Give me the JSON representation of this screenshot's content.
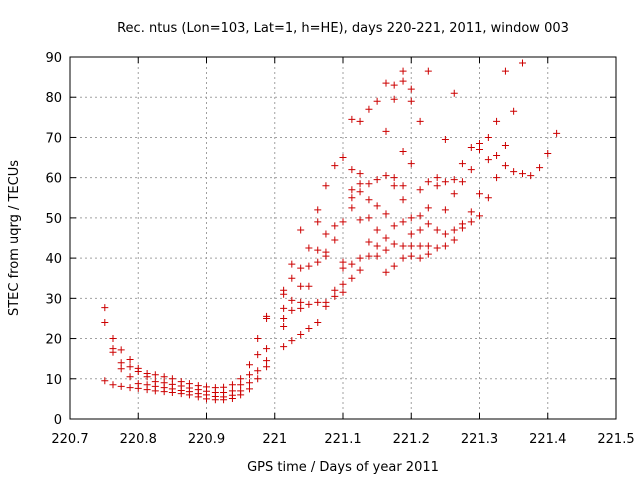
{
  "chart_data": {
    "type": "scatter",
    "title": "Rec. ntus (Lon=103, Lat=1, h=HE), days 220-221, 2011, window 003",
    "xlabel": "GPS time / Days of year 2011",
    "ylabel": "STEC from uqrg / TECUs",
    "xlim": [
      220.7,
      221.5
    ],
    "ylim": [
      0,
      90
    ],
    "x_ticks": [
      "220.7",
      "220.8",
      "220.9",
      "221",
      "221.1",
      "221.2",
      "221.3",
      "221.4",
      "221.5"
    ],
    "y_ticks": [
      "0",
      "10",
      "20",
      "30",
      "40",
      "50",
      "60",
      "70",
      "80",
      "90"
    ],
    "grid": true,
    "marker": "plus",
    "color": "#cc0000",
    "points": [
      [
        220.751,
        27.7
      ],
      [
        220.751,
        24.0
      ],
      [
        220.751,
        9.5
      ],
      [
        220.763,
        20.0
      ],
      [
        220.763,
        17.5
      ],
      [
        220.763,
        16.6
      ],
      [
        220.763,
        8.5
      ],
      [
        220.775,
        17.2
      ],
      [
        220.775,
        14.0
      ],
      [
        220.775,
        12.5
      ],
      [
        220.775,
        8.1
      ],
      [
        220.788,
        14.8
      ],
      [
        220.788,
        13.0
      ],
      [
        220.788,
        10.5
      ],
      [
        220.788,
        7.8
      ],
      [
        220.8,
        12.6
      ],
      [
        220.8,
        11.8
      ],
      [
        220.8,
        8.8
      ],
      [
        220.8,
        7.6
      ],
      [
        220.813,
        11.3
      ],
      [
        220.813,
        10.5
      ],
      [
        220.813,
        8.5
      ],
      [
        220.813,
        7.3
      ],
      [
        220.825,
        11.0
      ],
      [
        220.825,
        9.3
      ],
      [
        220.825,
        8.1
      ],
      [
        220.825,
        7.0
      ],
      [
        220.838,
        10.5
      ],
      [
        220.838,
        9.0
      ],
      [
        220.838,
        7.8
      ],
      [
        220.838,
        6.8
      ],
      [
        220.85,
        10.0
      ],
      [
        220.85,
        8.6
      ],
      [
        220.85,
        7.5
      ],
      [
        220.85,
        6.6
      ],
      [
        220.863,
        9.3
      ],
      [
        220.863,
        8.2
      ],
      [
        220.863,
        7.1
      ],
      [
        220.863,
        6.3
      ],
      [
        220.875,
        8.8
      ],
      [
        220.875,
        7.7
      ],
      [
        220.875,
        6.8
      ],
      [
        220.875,
        6.0
      ],
      [
        220.888,
        8.3
      ],
      [
        220.888,
        7.3
      ],
      [
        220.888,
        6.3
      ],
      [
        220.888,
        5.5
      ],
      [
        220.9,
        8.0
      ],
      [
        220.9,
        6.9
      ],
      [
        220.9,
        6.0
      ],
      [
        220.9,
        5.0
      ],
      [
        220.913,
        7.8
      ],
      [
        220.913,
        6.6
      ],
      [
        220.913,
        5.6
      ],
      [
        220.913,
        4.8
      ],
      [
        220.925,
        7.9
      ],
      [
        220.925,
        6.6
      ],
      [
        220.925,
        5.5
      ],
      [
        220.925,
        4.8
      ],
      [
        220.938,
        8.5
      ],
      [
        220.938,
        7.0
      ],
      [
        220.938,
        5.9
      ],
      [
        220.938,
        5.1
      ],
      [
        220.95,
        10.0
      ],
      [
        220.95,
        8.5
      ],
      [
        220.95,
        7.0
      ],
      [
        220.95,
        6.0
      ],
      [
        220.963,
        13.5
      ],
      [
        220.963,
        11.0
      ],
      [
        220.963,
        9.0
      ],
      [
        220.963,
        7.5
      ],
      [
        220.975,
        20.0
      ],
      [
        220.975,
        16.0
      ],
      [
        220.975,
        12.0
      ],
      [
        220.975,
        10.0
      ],
      [
        220.988,
        25.5
      ],
      [
        220.988,
        25.0
      ],
      [
        220.988,
        17.5
      ],
      [
        220.988,
        14.5
      ],
      [
        220.988,
        13.0
      ],
      [
        221.013,
        32.0
      ],
      [
        221.013,
        31.0
      ],
      [
        221.013,
        27.5
      ],
      [
        221.013,
        25.0
      ],
      [
        221.013,
        23.0
      ],
      [
        221.013,
        18.0
      ],
      [
        221.025,
        38.5
      ],
      [
        221.025,
        35.0
      ],
      [
        221.025,
        29.5
      ],
      [
        221.025,
        27.0
      ],
      [
        221.025,
        19.5
      ],
      [
        221.038,
        47.0
      ],
      [
        221.038,
        37.5
      ],
      [
        221.038,
        33.0
      ],
      [
        221.038,
        29.0
      ],
      [
        221.038,
        27.5
      ],
      [
        221.038,
        21.0
      ],
      [
        221.05,
        42.5
      ],
      [
        221.05,
        38.0
      ],
      [
        221.05,
        33.0
      ],
      [
        221.05,
        28.5
      ],
      [
        221.05,
        22.5
      ],
      [
        221.063,
        52.0
      ],
      [
        221.063,
        49.0
      ],
      [
        221.063,
        42.0
      ],
      [
        221.063,
        39.0
      ],
      [
        221.063,
        29.0
      ],
      [
        221.063,
        24.0
      ],
      [
        221.075,
        58.0
      ],
      [
        221.075,
        46.0
      ],
      [
        221.075,
        41.5
      ],
      [
        221.075,
        40.5
      ],
      [
        221.075,
        29.0
      ],
      [
        221.075,
        28.0
      ],
      [
        221.088,
        63.0
      ],
      [
        221.088,
        48.0
      ],
      [
        221.088,
        44.5
      ],
      [
        221.088,
        32.0
      ],
      [
        221.088,
        30.5
      ],
      [
        221.1,
        65.0
      ],
      [
        221.1,
        49.0
      ],
      [
        221.1,
        39.0
      ],
      [
        221.1,
        37.5
      ],
      [
        221.1,
        33.5
      ],
      [
        221.1,
        31.5
      ],
      [
        221.113,
        74.5
      ],
      [
        221.113,
        62.0
      ],
      [
        221.113,
        57.0
      ],
      [
        221.113,
        55.0
      ],
      [
        221.113,
        52.5
      ],
      [
        221.113,
        38.5
      ],
      [
        221.113,
        35.0
      ],
      [
        221.125,
        74.0
      ],
      [
        221.125,
        61.0
      ],
      [
        221.125,
        58.5
      ],
      [
        221.125,
        56.5
      ],
      [
        221.125,
        49.5
      ],
      [
        221.125,
        40.0
      ],
      [
        221.125,
        37.0
      ],
      [
        221.138,
        77.0
      ],
      [
        221.138,
        58.5
      ],
      [
        221.138,
        54.5
      ],
      [
        221.138,
        50.0
      ],
      [
        221.138,
        44.0
      ],
      [
        221.138,
        40.5
      ],
      [
        221.15,
        79.0
      ],
      [
        221.15,
        59.5
      ],
      [
        221.15,
        53.0
      ],
      [
        221.15,
        47.0
      ],
      [
        221.15,
        43.0
      ],
      [
        221.15,
        40.5
      ],
      [
        221.163,
        83.5
      ],
      [
        221.163,
        71.5
      ],
      [
        221.163,
        60.5
      ],
      [
        221.163,
        51.0
      ],
      [
        221.163,
        45.0
      ],
      [
        221.163,
        42.0
      ],
      [
        221.163,
        36.5
      ],
      [
        221.175,
        83.0
      ],
      [
        221.175,
        79.5
      ],
      [
        221.175,
        60.0
      ],
      [
        221.175,
        58.0
      ],
      [
        221.175,
        48.0
      ],
      [
        221.175,
        43.5
      ],
      [
        221.175,
        38.0
      ],
      [
        221.188,
        86.5
      ],
      [
        221.188,
        84.0
      ],
      [
        221.188,
        66.5
      ],
      [
        221.188,
        58.0
      ],
      [
        221.188,
        54.5
      ],
      [
        221.188,
        49.0
      ],
      [
        221.188,
        43.0
      ],
      [
        221.188,
        40.0
      ],
      [
        221.2,
        82.0
      ],
      [
        221.2,
        79.0
      ],
      [
        221.2,
        63.5
      ],
      [
        221.2,
        50.0
      ],
      [
        221.2,
        46.0
      ],
      [
        221.2,
        43.0
      ],
      [
        221.2,
        40.5
      ],
      [
        221.213,
        74.0
      ],
      [
        221.213,
        57.0
      ],
      [
        221.213,
        50.5
      ],
      [
        221.213,
        47.0
      ],
      [
        221.213,
        43.0
      ],
      [
        221.213,
        40.0
      ],
      [
        221.225,
        86.5
      ],
      [
        221.225,
        59.0
      ],
      [
        221.225,
        52.5
      ],
      [
        221.225,
        48.5
      ],
      [
        221.225,
        43.0
      ],
      [
        221.225,
        41.0
      ],
      [
        221.238,
        60.0
      ],
      [
        221.238,
        58.0
      ],
      [
        221.238,
        47.0
      ],
      [
        221.238,
        42.5
      ],
      [
        221.25,
        69.5
      ],
      [
        221.25,
        59.0
      ],
      [
        221.25,
        52.0
      ],
      [
        221.25,
        46.0
      ],
      [
        221.25,
        43.0
      ],
      [
        221.263,
        81.0
      ],
      [
        221.263,
        59.5
      ],
      [
        221.263,
        56.0
      ],
      [
        221.263,
        47.0
      ],
      [
        221.263,
        44.5
      ],
      [
        221.275,
        63.5
      ],
      [
        221.275,
        59.0
      ],
      [
        221.275,
        48.5
      ],
      [
        221.275,
        47.5
      ],
      [
        221.288,
        67.5
      ],
      [
        221.288,
        62.0
      ],
      [
        221.288,
        51.5
      ],
      [
        221.288,
        49.0
      ],
      [
        221.3,
        68.5
      ],
      [
        221.3,
        67.0
      ],
      [
        221.3,
        56.0
      ],
      [
        221.3,
        50.5
      ],
      [
        221.313,
        70.0
      ],
      [
        221.313,
        64.5
      ],
      [
        221.313,
        55.0
      ],
      [
        221.325,
        74.0
      ],
      [
        221.325,
        65.5
      ],
      [
        221.325,
        60.0
      ],
      [
        221.338,
        86.5
      ],
      [
        221.338,
        68.0
      ],
      [
        221.338,
        63.0
      ],
      [
        221.35,
        76.5
      ],
      [
        221.35,
        61.5
      ],
      [
        221.363,
        88.5
      ],
      [
        221.363,
        61.0
      ],
      [
        221.375,
        60.5
      ],
      [
        221.388,
        62.5
      ],
      [
        221.4,
        66.0
      ],
      [
        221.413,
        71.0
      ]
    ]
  }
}
